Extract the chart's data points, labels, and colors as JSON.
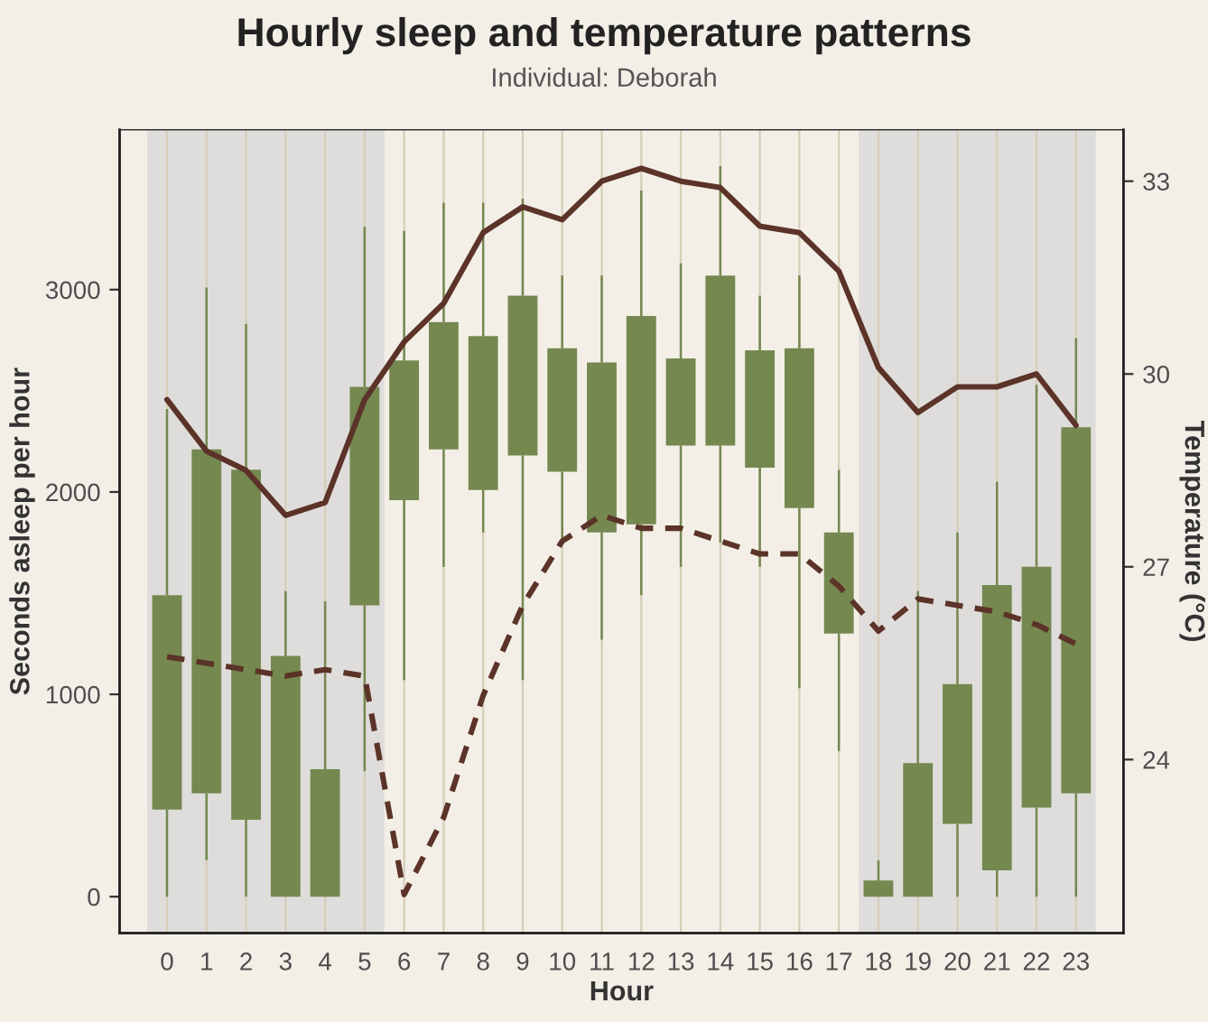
{
  "chart_data": {
    "type": "bar",
    "title": "Hourly sleep and temperature patterns",
    "subtitle": "Individual: Deborah",
    "xlabel": "Hour",
    "ylabel": "Seconds asleep per hour",
    "y2label": "Temperature (°C)",
    "categories": [
      "0",
      "1",
      "2",
      "3",
      "4",
      "5",
      "6",
      "7",
      "8",
      "9",
      "10",
      "11",
      "12",
      "13",
      "14",
      "15",
      "16",
      "17",
      "18",
      "19",
      "20",
      "21",
      "22",
      "23"
    ],
    "series": [
      {
        "color": "#74884f",
        "base": [
          430,
          510,
          380,
          0,
          0,
          1440,
          1960,
          2210,
          2010,
          2180,
          2100,
          1800,
          1840,
          2230,
          2230,
          2120,
          1920,
          1300,
          0,
          0,
          360,
          130,
          440,
          510
        ],
        "values": [
          1060,
          1700,
          1730,
          1190,
          630,
          1080,
          690,
          630,
          760,
          790,
          610,
          840,
          1030,
          430,
          840,
          580,
          790,
          500,
          80,
          660,
          690,
          1410,
          1190,
          1810
        ],
        "errors": [
          [
            0,
            2410
          ],
          [
            180,
            3010
          ],
          [
            0,
            2830
          ],
          [
            0,
            1510
          ],
          [
            0,
            1460
          ],
          [
            620,
            3310
          ],
          [
            1070,
            3290
          ],
          [
            1630,
            3430
          ],
          [
            1800,
            3430
          ],
          [
            1070,
            3450
          ],
          [
            1770,
            3070
          ],
          [
            1270,
            3070
          ],
          [
            1490,
            3490
          ],
          [
            1630,
            3130
          ],
          [
            1750,
            3610
          ],
          [
            1630,
            2970
          ],
          [
            1030,
            3070
          ],
          [
            720,
            2110
          ],
          [
            0,
            180
          ],
          [
            0,
            1510
          ],
          [
            0,
            1800
          ],
          [
            0,
            2050
          ],
          [
            0,
            2530
          ],
          [
            0,
            2760
          ]
        ]
      },
      {
        "type": "line",
        "axis": "y2",
        "color": "#5c3328",
        "line_style": "solid",
        "values": [
          29.6,
          28.8,
          28.5,
          27.8,
          28.0,
          29.6,
          30.5,
          31.1,
          32.2,
          32.6,
          32.4,
          33.0,
          33.2,
          33.0,
          32.9,
          32.3,
          32.2,
          31.6,
          30.1,
          29.4,
          29.8,
          29.8,
          30.0,
          29.2
        ]
      },
      {
        "type": "line",
        "axis": "y2",
        "color": "#5c3328",
        "line_style": "dashed",
        "values": [
          25.6,
          25.5,
          25.4,
          25.3,
          25.4,
          25.3,
          21.9,
          23.1,
          25.0,
          26.4,
          27.4,
          27.8,
          27.6,
          27.6,
          27.4,
          27.2,
          27.2,
          26.7,
          26.0,
          26.5,
          26.4,
          26.3,
          26.1,
          25.8
        ]
      }
    ],
    "ylim": [
      -180,
      3790
    ],
    "yticks": [
      0,
      1000,
      2000,
      3000
    ],
    "y2lim": [
      21.3,
      33.8
    ],
    "y2ticks": [
      24,
      27,
      30,
      33
    ],
    "bands": [
      {
        "axis": "x",
        "from": "0",
        "to": "5",
        "color": "#dfdddb"
      },
      {
        "axis": "x",
        "from": "18",
        "to": "23",
        "color": "#dfdddb"
      }
    ],
    "grid": "x",
    "legend": false
  }
}
